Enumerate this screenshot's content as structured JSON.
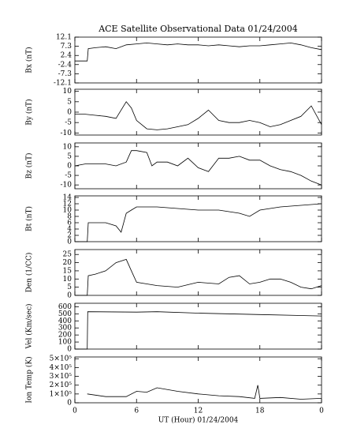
{
  "chart_data": [
    {
      "type": "line",
      "title": "ACE Satellite Observational Data  01/24/2004",
      "ylabel": "Bx (nT)",
      "x": [
        0,
        1.2,
        1.3,
        2,
        3,
        4,
        5,
        6,
        7,
        8,
        9,
        10,
        11,
        12,
        13,
        14,
        15,
        16,
        17,
        18,
        19,
        20,
        21,
        22,
        23,
        24
      ],
      "series": [
        {
          "color": "#000000",
          "values": [
            -0.5,
            -0.5,
            6,
            6.5,
            7,
            6,
            8,
            8.5,
            9,
            8.5,
            8,
            8.5,
            8,
            8,
            7.5,
            8,
            7.5,
            7,
            7.5,
            7.5,
            8,
            8.5,
            9,
            8,
            6.5,
            5.5
          ]
        }
      ],
      "xlim": [
        0,
        24
      ],
      "xticks": [
        0,
        6,
        12,
        18,
        {
          "value": 24,
          "label": "0"
        }
      ],
      "ylim": [
        -12.1,
        12.1
      ],
      "yticks": [
        12.1,
        7.3,
        2.4,
        -2.4,
        -7.3,
        -12.1
      ]
    },
    {
      "type": "line",
      "ylabel": "By (nT)",
      "x": [
        0,
        1,
        2,
        3,
        4,
        5,
        5.5,
        6,
        7,
        8,
        9,
        10,
        11,
        12,
        13,
        14,
        15,
        16,
        17,
        18,
        19,
        20,
        21,
        22,
        23,
        24
      ],
      "series": [
        {
          "color": "#000000",
          "values": [
            -1,
            -1,
            -1.5,
            -2,
            -3,
            5,
            2,
            -4,
            -8,
            -8.5,
            -8,
            -7,
            -6,
            -3,
            1,
            -4,
            -5,
            -5,
            -4,
            -5,
            -7,
            -6,
            -4,
            -2,
            3,
            -6
          ]
        }
      ],
      "xlim": [
        0,
        24
      ],
      "xticks": [
        0,
        6,
        12,
        18,
        {
          "value": 24,
          "label": "0"
        }
      ],
      "ylim": [
        -11,
        11
      ],
      "yticks": [
        10,
        5,
        0,
        -5,
        -10
      ]
    },
    {
      "type": "line",
      "ylabel": "Bz (nT)",
      "x": [
        0,
        1,
        2,
        3,
        4,
        5,
        5.5,
        6,
        7,
        7.5,
        8,
        9,
        10,
        11,
        12,
        13,
        14,
        15,
        16,
        17,
        18,
        19,
        20,
        21,
        22,
        23,
        24
      ],
      "series": [
        {
          "color": "#000000",
          "values": [
            0,
            1,
            1,
            1,
            0,
            2,
            8,
            8,
            7,
            0,
            2,
            2,
            0,
            4,
            -1,
            -3,
            4,
            4,
            5,
            3,
            3,
            0,
            -2,
            -3,
            -5,
            -8,
            -10
          ]
        }
      ],
      "xlim": [
        0,
        24
      ],
      "xticks": [
        0,
        6,
        12,
        18,
        {
          "value": 24,
          "label": "0"
        }
      ],
      "ylim": [
        -12,
        12
      ],
      "yticks": [
        10,
        5,
        0,
        -5,
        -10
      ]
    },
    {
      "type": "line",
      "ylabel": "Bt (nT)",
      "x": [
        0,
        1.2,
        1.3,
        2,
        3,
        4,
        4.5,
        5,
        5.5,
        6,
        8,
        10,
        12,
        14,
        16,
        17,
        18,
        20,
        22,
        24
      ],
      "series": [
        {
          "color": "#000000",
          "values": [
            0,
            0,
            6,
            6,
            6,
            5,
            3,
            9,
            10,
            11,
            11,
            10.5,
            10,
            10,
            9,
            8,
            10,
            11,
            11.5,
            12
          ]
        }
      ],
      "xlim": [
        0,
        24
      ],
      "xticks": [
        0,
        6,
        12,
        18,
        {
          "value": 24,
          "label": "0"
        }
      ],
      "ylim": [
        0,
        14.5
      ],
      "yticks": [
        0,
        2,
        4,
        6,
        8,
        10,
        12,
        14
      ]
    },
    {
      "type": "line",
      "ylabel": "Den (1/CC)",
      "x": [
        0,
        1.2,
        1.3,
        2,
        3,
        4,
        5,
        5.5,
        6,
        7,
        8,
        10,
        12,
        14,
        15,
        16,
        17,
        18,
        19,
        20,
        21,
        22,
        23,
        24
      ],
      "series": [
        {
          "color": "#000000",
          "values": [
            0,
            0,
            12,
            13,
            15,
            20,
            22,
            15,
            8,
            7,
            6,
            5,
            8,
            7,
            11,
            12,
            7,
            8,
            10,
            10,
            8,
            5,
            4,
            6
          ]
        }
      ],
      "xlim": [
        0,
        24
      ],
      "xticks": [
        0,
        6,
        12,
        18,
        {
          "value": 24,
          "label": "0"
        }
      ],
      "ylim": [
        0,
        28
      ],
      "yticks": [
        0,
        5,
        10,
        15,
        20,
        25
      ]
    },
    {
      "type": "line",
      "ylabel": "Vel (Km/sec)",
      "x": [
        0,
        1.2,
        1.25,
        6,
        8,
        12,
        18,
        24
      ],
      "series": [
        {
          "color": "#000000",
          "values": [
            0,
            0,
            530,
            525,
            530,
            510,
            490,
            470
          ]
        }
      ],
      "xlim": [
        0,
        24
      ],
      "xticks": [
        0,
        6,
        12,
        18,
        {
          "value": 24,
          "label": "0"
        }
      ],
      "ylim": [
        0,
        650
      ],
      "yticks": [
        0,
        100,
        200,
        300,
        400,
        500,
        600
      ]
    },
    {
      "type": "line",
      "ylabel": "Ion Temp (K)",
      "xlabel": "UT (Hour)  01/24/2004",
      "x": [
        1.2,
        3,
        5,
        6,
        7,
        8,
        10,
        12,
        14,
        16,
        17.5,
        17.8,
        18,
        20,
        22,
        24
      ],
      "series": [
        {
          "color": "#000000",
          "values": [
            100000,
            70000,
            70000,
            130000,
            120000,
            170000,
            130000,
            100000,
            80000,
            70000,
            50000,
            200000,
            50000,
            60000,
            40000,
            50000
          ]
        }
      ],
      "xlim": [
        0,
        24
      ],
      "xticks": [
        0,
        6,
        12,
        18,
        {
          "value": 24,
          "label": "0"
        }
      ],
      "ylim": [
        0,
        520000
      ],
      "yticks": [
        0,
        {
          "value": 100000,
          "label": "1×10⁵"
        },
        {
          "value": 200000,
          "label": "2×10⁵"
        },
        {
          "value": 300000,
          "label": "3×10⁵"
        },
        {
          "value": 400000,
          "label": "4×10⁵"
        },
        {
          "value": 500000,
          "label": "5×10⁵"
        }
      ]
    }
  ]
}
